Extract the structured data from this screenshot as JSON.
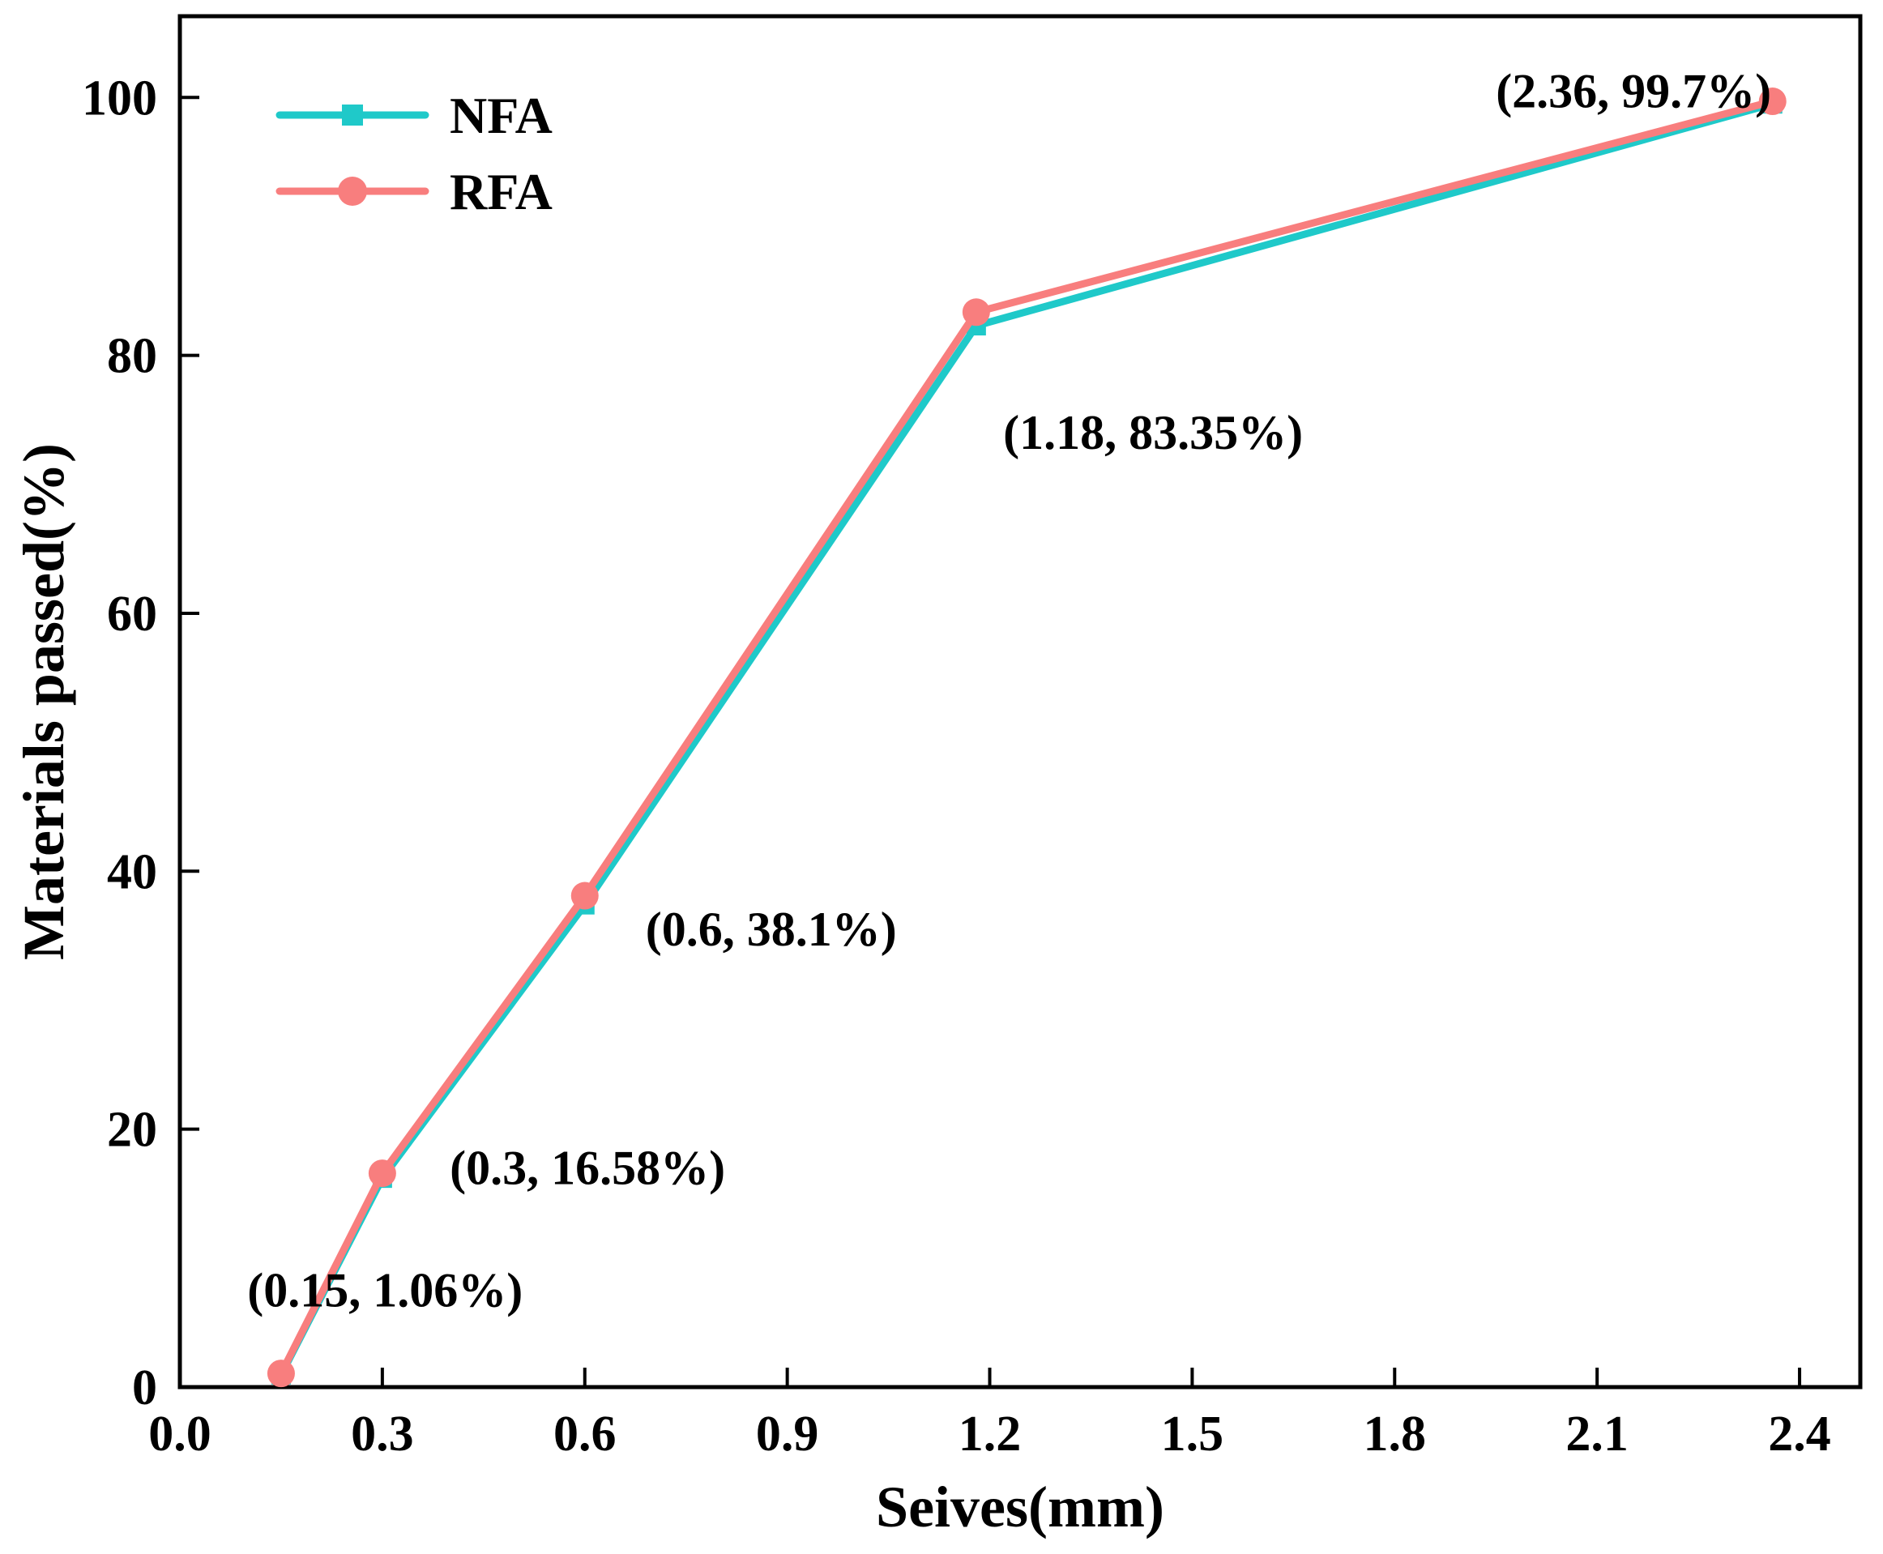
{
  "chart_data": {
    "type": "line",
    "title": "",
    "xlabel": "Seives(mm)",
    "ylabel": "Materials passed(%)",
    "x": [
      0.15,
      0.3,
      0.6,
      1.18,
      2.36
    ],
    "series": [
      {
        "name": "NFA",
        "color": "#1fc9c9",
        "marker": "square",
        "values": [
          0.95,
          16.2,
          37.4,
          82.3,
          99.5
        ]
      },
      {
        "name": "RFA",
        "color": "#f87e7e",
        "marker": "circle",
        "values": [
          1.06,
          16.58,
          38.1,
          83.35,
          99.7
        ]
      }
    ],
    "xticks": [
      0.0,
      0.3,
      0.6,
      0.9,
      1.2,
      1.5,
      1.8,
      2.1,
      2.4
    ],
    "xtick_labels": [
      "0.0",
      "0.3",
      "0.6",
      "0.9",
      "1.2",
      "1.5",
      "1.8",
      "2.1",
      "2.4"
    ],
    "yticks": [
      0,
      20,
      40,
      60,
      80,
      100
    ],
    "ytick_labels": [
      "0",
      "20",
      "40",
      "60",
      "80",
      "100"
    ],
    "xlim": [
      0,
      2.49
    ],
    "ylim": [
      0,
      106.3
    ],
    "grid": false,
    "legend_position": "top-left",
    "annotations": [
      {
        "text": "(0.15, 1.06%)",
        "x": 0.1,
        "y": 7.5
      },
      {
        "text": "(0.3, 16.58%)",
        "x": 0.4,
        "y": 17.0
      },
      {
        "text": "(0.6, 38.1%)",
        "x": 0.69,
        "y": 35.5
      },
      {
        "text": "(1.18, 83.35%)",
        "x": 1.22,
        "y": 74.0
      },
      {
        "text": "(2.36, 99.7%)",
        "x": 1.95,
        "y": 100.5
      }
    ]
  },
  "style": {
    "axis_color": "#000000",
    "background": "#ffffff",
    "line_width": 9,
    "frame_width": 5
  }
}
